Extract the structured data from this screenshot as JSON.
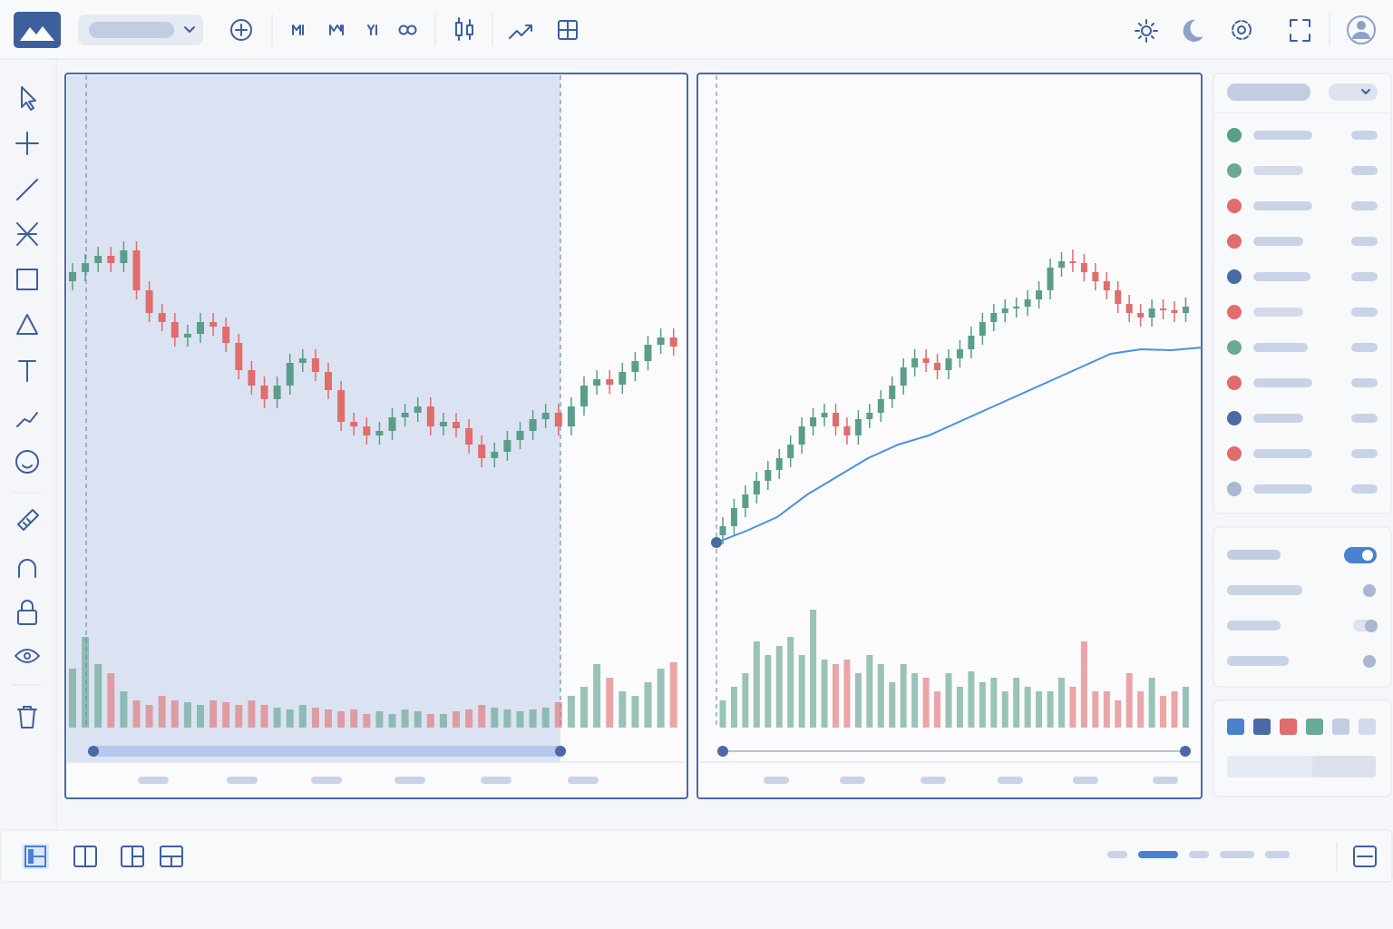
{
  "panels": [
    {
      "ylim": [
        0,
        520
      ],
      "volume_ylim": [
        0,
        100
      ],
      "up_color": "#5a9e8a",
      "down_color": "#e06c6c",
      "candles": [
        [
          290,
          310,
          280,
          300
        ],
        [
          300,
          320,
          290,
          310
        ],
        [
          310,
          328,
          300,
          318
        ],
        [
          318,
          328,
          300,
          310
        ],
        [
          310,
          334,
          300,
          324
        ],
        [
          324,
          334,
          270,
          280
        ],
        [
          280,
          290,
          245,
          255
        ],
        [
          255,
          265,
          235,
          245
        ],
        [
          245,
          255,
          218,
          228
        ],
        [
          228,
          242,
          218,
          232
        ],
        [
          232,
          255,
          222,
          245
        ],
        [
          245,
          255,
          230,
          240
        ],
        [
          240,
          250,
          212,
          222
        ],
        [
          222,
          232,
          182,
          192
        ],
        [
          192,
          202,
          165,
          175
        ],
        [
          175,
          185,
          150,
          160
        ],
        [
          160,
          185,
          150,
          175
        ],
        [
          175,
          210,
          165,
          200
        ],
        [
          200,
          215,
          190,
          205
        ],
        [
          205,
          215,
          180,
          190
        ],
        [
          190,
          200,
          160,
          170
        ],
        [
          170,
          180,
          125,
          135
        ],
        [
          135,
          145,
          120,
          130
        ],
        [
          130,
          140,
          110,
          120
        ],
        [
          120,
          135,
          110,
          125
        ],
        [
          125,
          150,
          115,
          140
        ],
        [
          140,
          155,
          130,
          145
        ],
        [
          145,
          162,
          135,
          152
        ],
        [
          152,
          162,
          120,
          130
        ],
        [
          130,
          145,
          120,
          135
        ],
        [
          135,
          145,
          118,
          128
        ],
        [
          128,
          138,
          100,
          110
        ],
        [
          110,
          120,
          85,
          95
        ],
        [
          95,
          112,
          85,
          102
        ],
        [
          102,
          125,
          92,
          115
        ],
        [
          115,
          135,
          105,
          125
        ],
        [
          125,
          148,
          115,
          138
        ],
        [
          138,
          155,
          128,
          145
        ],
        [
          145,
          155,
          120,
          130
        ],
        [
          130,
          162,
          120,
          152
        ],
        [
          152,
          185,
          142,
          175
        ],
        [
          175,
          192,
          165,
          182
        ],
        [
          182,
          192,
          166,
          176
        ],
        [
          176,
          200,
          166,
          190
        ],
        [
          190,
          212,
          180,
          202
        ],
        [
          202,
          230,
          192,
          220
        ],
        [
          220,
          238,
          210,
          228
        ],
        [
          228,
          238,
          208,
          218
        ]
      ],
      "volumes": [
        65,
        100,
        70,
        60,
        40,
        30,
        25,
        35,
        30,
        28,
        25,
        30,
        28,
        25,
        30,
        25,
        22,
        20,
        25,
        22,
        20,
        18,
        20,
        15,
        18,
        15,
        20,
        18,
        15,
        15,
        18,
        20,
        25,
        22,
        20,
        18,
        20,
        22,
        28,
        35,
        45,
        70,
        55,
        40,
        35,
        50,
        65,
        72
      ]
    },
    {
      "ylim": [
        0,
        520
      ],
      "volume_ylim": [
        0,
        100
      ],
      "up_color": "#5a9e8a",
      "down_color": "#e06c6c",
      "ma_color": "#4a90e2",
      "candles": [
        [
          10,
          30,
          0,
          20
        ],
        [
          20,
          50,
          10,
          40
        ],
        [
          40,
          65,
          30,
          55
        ],
        [
          55,
          80,
          45,
          70
        ],
        [
          70,
          92,
          60,
          82
        ],
        [
          82,
          105,
          72,
          95
        ],
        [
          95,
          120,
          85,
          110
        ],
        [
          110,
          140,
          100,
          130
        ],
        [
          130,
          150,
          120,
          140
        ],
        [
          140,
          155,
          130,
          145
        ],
        [
          145,
          155,
          120,
          130
        ],
        [
          130,
          140,
          110,
          120
        ],
        [
          120,
          148,
          110,
          138
        ],
        [
          138,
          155,
          128,
          145
        ],
        [
          145,
          170,
          135,
          160
        ],
        [
          160,
          185,
          150,
          175
        ],
        [
          175,
          205,
          165,
          195
        ],
        [
          195,
          215,
          185,
          205
        ],
        [
          205,
          215,
          190,
          200
        ],
        [
          200,
          210,
          182,
          192
        ],
        [
          192,
          215,
          182,
          205
        ],
        [
          205,
          225,
          195,
          215
        ],
        [
          215,
          240,
          205,
          230
        ],
        [
          230,
          255,
          220,
          245
        ],
        [
          245,
          265,
          235,
          255
        ],
        [
          255,
          270,
          245,
          260
        ],
        [
          260,
          272,
          250,
          262
        ],
        [
          262,
          280,
          252,
          270
        ],
        [
          270,
          290,
          260,
          280
        ],
        [
          280,
          315,
          270,
          305
        ],
        [
          305,
          322,
          295,
          312
        ],
        [
          312,
          325,
          300,
          310
        ],
        [
          310,
          320,
          290,
          300
        ],
        [
          300,
          310,
          280,
          290
        ],
        [
          290,
          300,
          270,
          280
        ],
        [
          280,
          290,
          255,
          265
        ],
        [
          265,
          275,
          245,
          255
        ],
        [
          255,
          265,
          240,
          250
        ],
        [
          250,
          270,
          240,
          260
        ],
        [
          260,
          270,
          248,
          258
        ],
        [
          258,
          268,
          245,
          255
        ],
        [
          255,
          272,
          245,
          262
        ]
      ],
      "volumes": [
        30,
        45,
        60,
        95,
        80,
        90,
        100,
        80,
        130,
        75,
        70,
        75,
        60,
        80,
        70,
        50,
        70,
        60,
        55,
        40,
        60,
        45,
        62,
        50,
        55,
        40,
        55,
        45,
        40,
        40,
        55,
        45,
        95,
        40,
        40,
        30,
        60,
        40,
        55,
        35,
        40,
        45
      ],
      "ma": [
        2,
        15,
        30,
        55,
        75,
        95,
        110,
        120,
        135,
        150,
        165,
        180,
        195,
        210,
        215,
        214,
        217
      ]
    }
  ]
}
